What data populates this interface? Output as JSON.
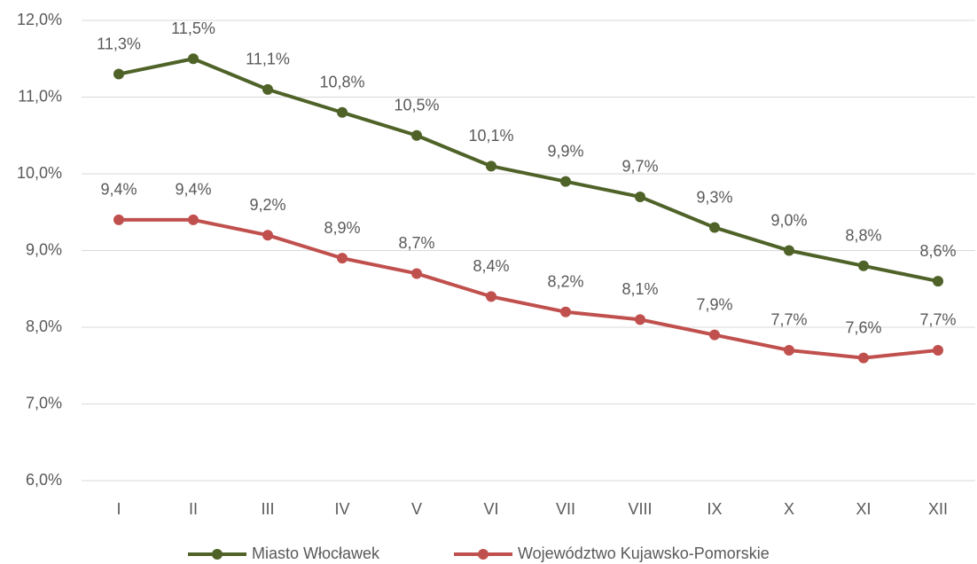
{
  "chart_data": {
    "type": "line",
    "categories": [
      "I",
      "II",
      "III",
      "IV",
      "V",
      "VI",
      "VII",
      "VIII",
      "IX",
      "X",
      "XI",
      "XII"
    ],
    "series": [
      {
        "name": "Miasto Włocławek",
        "color": "#4f6228",
        "values": [
          11.3,
          11.5,
          11.1,
          10.8,
          10.5,
          10.1,
          9.9,
          9.7,
          9.3,
          9.0,
          8.8,
          8.6
        ],
        "value_labels": [
          "11,3%",
          "11,5%",
          "11,1%",
          "10,8%",
          "10,5%",
          "10,1%",
          "9,9%",
          "9,7%",
          "9,3%",
          "9,0%",
          "8,8%",
          "8,6%"
        ]
      },
      {
        "name": "Województwo Kujawsko-Pomorskie",
        "color": "#c0504d",
        "values": [
          9.4,
          9.4,
          9.2,
          8.9,
          8.7,
          8.4,
          8.2,
          8.1,
          7.9,
          7.7,
          7.6,
          7.7
        ],
        "value_labels": [
          "9,4%",
          "9,4%",
          "9,2%",
          "8,9%",
          "8,7%",
          "8,4%",
          "8,2%",
          "8,1%",
          "7,9%",
          "7,7%",
          "7,6%",
          "7,7%"
        ]
      }
    ],
    "ylim": [
      6,
      12
    ],
    "yticks": [
      {
        "value": 6,
        "label": "6,0%"
      },
      {
        "value": 7,
        "label": "7,0%"
      },
      {
        "value": 8,
        "label": "8,0%"
      },
      {
        "value": 9,
        "label": "9,0%"
      },
      {
        "value": 10,
        "label": "10,0%"
      },
      {
        "value": 11,
        "label": "11,0%"
      },
      {
        "value": 12,
        "label": "12,0%"
      }
    ],
    "grid": true,
    "legend": "bottom"
  }
}
